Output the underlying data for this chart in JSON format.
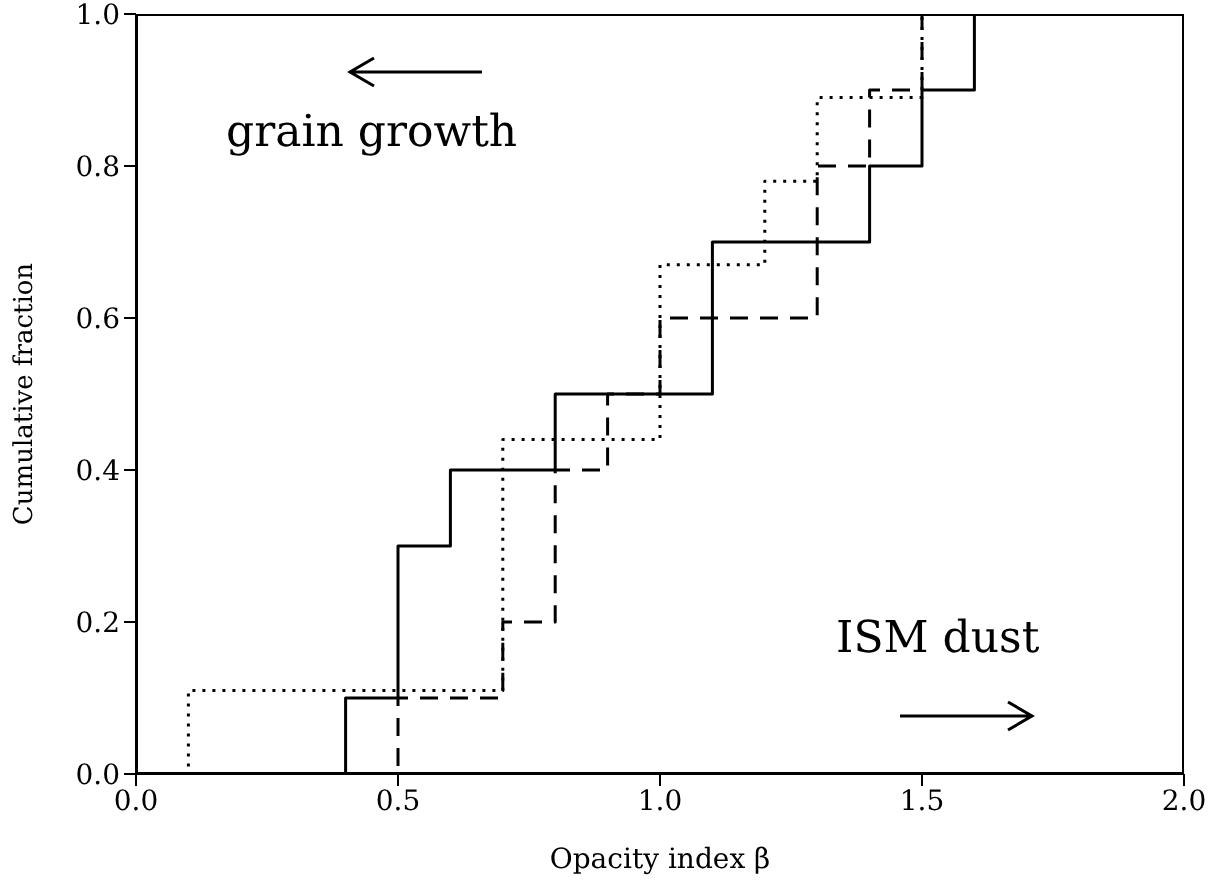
{
  "chart_data": {
    "type": "step",
    "xlabel": "Opacity index β",
    "ylabel": "Cumulative fraction",
    "annotations": [
      "grain growth",
      "ISM dust"
    ],
    "xlim": [
      0,
      2
    ],
    "xticks": [
      {
        "value": 0,
        "label": "0.0"
      },
      0.5,
      {
        "value": 1,
        "label": "1.0"
      },
      1.5,
      {
        "value": 2,
        "label": "2.0"
      }
    ],
    "ylim": [
      0,
      1
    ],
    "yticks": [
      {
        "value": 0,
        "label": "0.0"
      },
      0.2,
      0.4,
      0.6,
      0.8,
      {
        "value": 1,
        "label": "1.0"
      }
    ],
    "series": [
      {
        "color": "#000000",
        "line_style": "solid",
        "x": [
          0,
          0.4,
          0.5,
          0.6,
          0.8,
          1.1,
          1.4,
          1.5,
          1.6
        ],
        "values": [
          0,
          0.1,
          0.3,
          0.4,
          0.5,
          0.7,
          0.8,
          0.9,
          1.0
        ]
      },
      {
        "color": "#000000",
        "line_style": "dashed",
        "x": [
          0,
          0.5,
          0.7,
          0.8,
          0.9,
          1.0,
          1.3,
          1.4,
          1.5
        ],
        "values": [
          0,
          0.1,
          0.2,
          0.4,
          0.5,
          0.6,
          0.8,
          0.9,
          1.0
        ]
      },
      {
        "color": "#000000",
        "line_style": "dotted",
        "x": [
          0,
          0.1,
          0.7,
          1.0,
          1.2,
          1.3,
          1.5
        ],
        "values": [
          0,
          0.11,
          0.44,
          0.67,
          0.78,
          0.89,
          1.0
        ]
      }
    ]
  }
}
